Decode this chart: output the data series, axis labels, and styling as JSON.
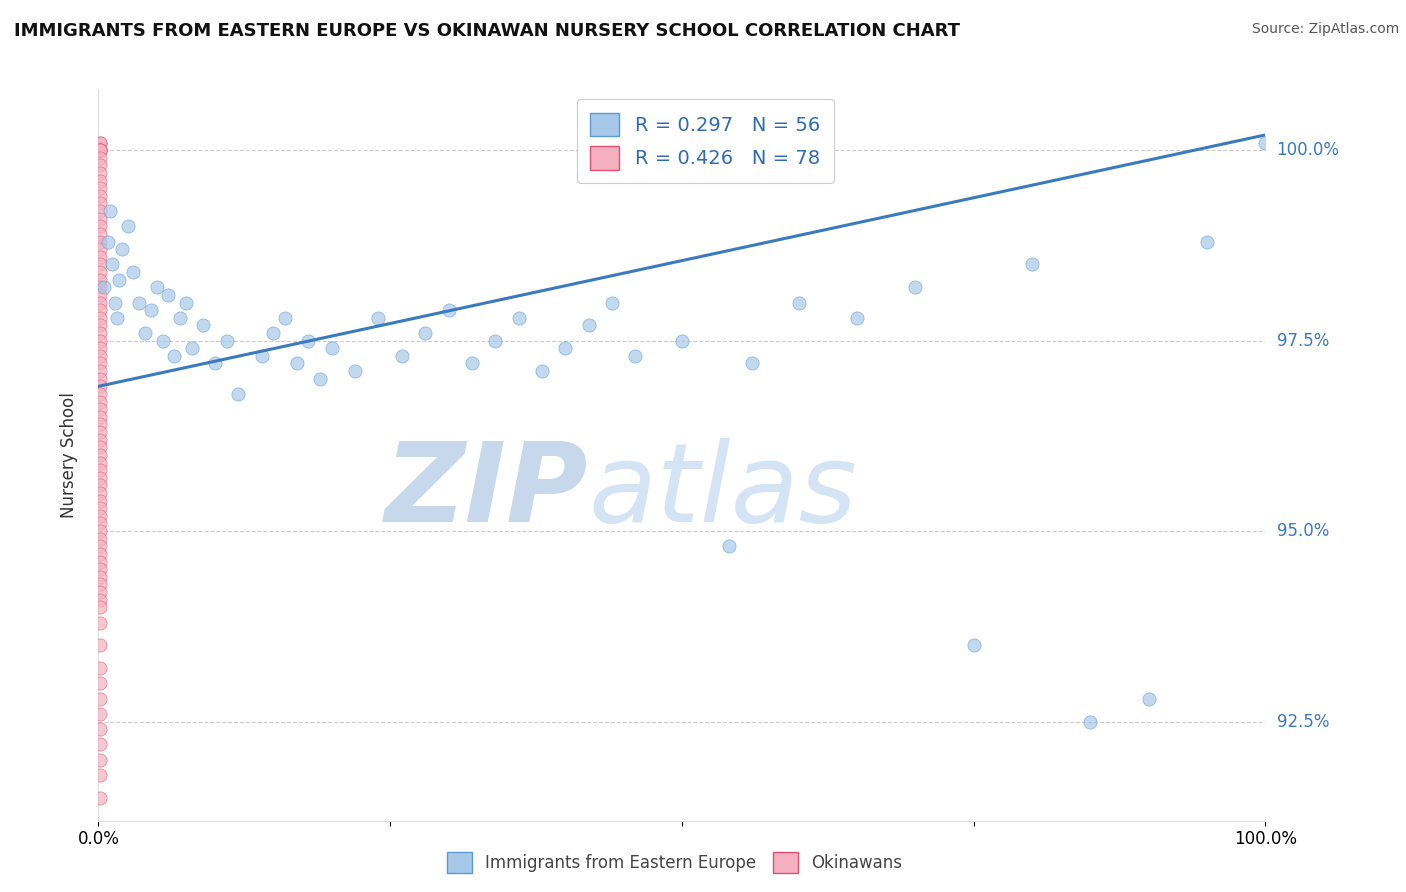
{
  "title": "IMMIGRANTS FROM EASTERN EUROPE VS OKINAWAN NURSERY SCHOOL CORRELATION CHART",
  "source": "Source: ZipAtlas.com",
  "ylabel": "Nursery School",
  "legend_blue_label": "R = 0.297   N = 56",
  "legend_pink_label": "R = 0.426   N = 78",
  "legend_bottom_blue": "Immigrants from Eastern Europe",
  "legend_bottom_pink": "Okinawans",
  "blue_color": "#a8c8e8",
  "blue_edge": "#5b9bd5",
  "pink_color": "#f4b0c0",
  "pink_edge": "#e05070",
  "trendline_color": "#3a7abf",
  "background_color": "#ffffff",
  "watermark_color": "#dce8f4",
  "ytick_vals": [
    92.5,
    95.0,
    97.5,
    100.0
  ],
  "ytick_labels": [
    "92.5%",
    "95.0%",
    "97.5%",
    "100.0%"
  ],
  "xlim": [
    0.0,
    1.0
  ],
  "ylim": [
    91.2,
    100.8
  ],
  "trendline_x0": 0.0,
  "trendline_y0": 96.9,
  "trendline_x1": 1.0,
  "trendline_y1": 100.2,
  "blue_scatter_x": [
    0.005,
    0.008,
    0.01,
    0.012,
    0.014,
    0.016,
    0.018,
    0.02,
    0.025,
    0.03,
    0.035,
    0.04,
    0.045,
    0.05,
    0.055,
    0.06,
    0.065,
    0.07,
    0.075,
    0.08,
    0.09,
    0.1,
    0.11,
    0.12,
    0.14,
    0.15,
    0.16,
    0.17,
    0.18,
    0.19,
    0.2,
    0.22,
    0.24,
    0.26,
    0.28,
    0.3,
    0.32,
    0.34,
    0.36,
    0.38,
    0.4,
    0.42,
    0.44,
    0.46,
    0.5,
    0.54,
    0.56,
    0.6,
    0.65,
    0.7,
    0.75,
    0.8,
    0.85,
    0.9,
    0.95,
    1.0
  ],
  "blue_scatter_y": [
    98.2,
    98.8,
    99.2,
    98.5,
    98.0,
    97.8,
    98.3,
    98.7,
    99.0,
    98.4,
    98.0,
    97.6,
    97.9,
    98.2,
    97.5,
    98.1,
    97.3,
    97.8,
    98.0,
    97.4,
    97.7,
    97.2,
    97.5,
    96.8,
    97.3,
    97.6,
    97.8,
    97.2,
    97.5,
    97.0,
    97.4,
    97.1,
    97.8,
    97.3,
    97.6,
    97.9,
    97.2,
    97.5,
    97.8,
    97.1,
    97.4,
    97.7,
    98.0,
    97.3,
    97.5,
    94.8,
    97.2,
    98.0,
    97.8,
    98.2,
    93.5,
    98.5,
    92.5,
    92.8,
    98.8,
    100.1
  ],
  "pink_scatter_x": [
    0.001,
    0.001,
    0.001,
    0.001,
    0.001,
    0.001,
    0.001,
    0.001,
    0.001,
    0.001,
    0.001,
    0.001,
    0.001,
    0.001,
    0.001,
    0.001,
    0.001,
    0.001,
    0.001,
    0.001,
    0.001,
    0.001,
    0.001,
    0.001,
    0.001,
    0.001,
    0.001,
    0.001,
    0.001,
    0.001,
    0.001,
    0.001,
    0.001,
    0.001,
    0.001,
    0.001,
    0.001,
    0.001,
    0.001,
    0.001,
    0.001,
    0.001,
    0.001,
    0.001,
    0.001,
    0.001,
    0.001,
    0.001,
    0.001,
    0.001,
    0.001,
    0.001,
    0.001,
    0.001,
    0.001,
    0.001,
    0.001,
    0.001,
    0.001,
    0.001,
    0.001,
    0.001,
    0.001,
    0.001,
    0.001,
    0.001,
    0.001,
    0.001,
    0.001,
    0.001,
    0.001,
    0.001,
    0.001,
    0.001,
    0.001,
    0.001,
    0.001,
    0.001
  ],
  "pink_scatter_y": [
    100.1,
    100.1,
    100.0,
    100.0,
    100.0,
    100.0,
    100.0,
    99.9,
    99.8,
    99.7,
    99.6,
    99.5,
    99.4,
    99.3,
    99.2,
    99.1,
    99.0,
    98.9,
    98.8,
    98.7,
    98.6,
    98.5,
    98.4,
    98.3,
    98.2,
    98.1,
    98.0,
    97.9,
    97.8,
    97.7,
    97.6,
    97.5,
    97.4,
    97.3,
    97.2,
    97.1,
    97.0,
    96.9,
    96.8,
    96.7,
    96.6,
    96.5,
    96.4,
    96.3,
    96.2,
    96.1,
    96.0,
    95.9,
    95.8,
    95.7,
    95.6,
    95.5,
    95.4,
    95.3,
    95.2,
    95.1,
    95.0,
    94.9,
    94.8,
    94.7,
    94.6,
    94.5,
    94.4,
    94.3,
    94.2,
    94.1,
    94.0,
    93.8,
    93.5,
    93.2,
    93.0,
    92.8,
    92.6,
    92.4,
    92.2,
    92.0,
    91.8,
    91.5
  ]
}
